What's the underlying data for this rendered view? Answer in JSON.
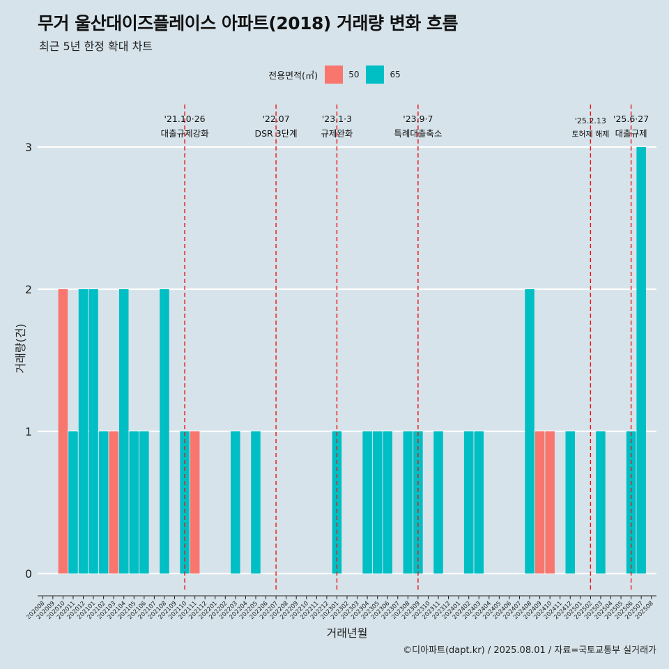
{
  "title": "무거 울산대이즈플레이스 아파트(2018) 거래량 변화 흐름",
  "subtitle": "최근 5년 한정 확대 차트",
  "caption": "©디아파트(dapt.kr) / 2025.08.01 / 자료=국토교통부 실거래가",
  "legend": {
    "title": "전용면적(㎡)",
    "items": [
      {
        "label": "50",
        "color": "#f8766d"
      },
      {
        "label": "65",
        "color": "#00bfc4"
      }
    ]
  },
  "colors": {
    "background": "#d6e3ea",
    "grid": "#ffffff",
    "event_line": "#ee1111"
  },
  "chart_data": {
    "type": "bar",
    "stacked": true,
    "xlabel": "거래년월",
    "ylabel": "거래량(건)",
    "ylim": [
      0,
      3
    ],
    "yticks": [
      0,
      1,
      2,
      3
    ],
    "grid": true,
    "legend_position": "top",
    "categories": [
      "202008",
      "202009",
      "202010",
      "202011",
      "202012",
      "202101",
      "202102",
      "202103",
      "202104",
      "202105",
      "202106",
      "202107",
      "202108",
      "202109",
      "202110",
      "202111",
      "202112",
      "202201",
      "202202",
      "202203",
      "202204",
      "202205",
      "202206",
      "202207",
      "202208",
      "202209",
      "202210",
      "202211",
      "202212",
      "202301",
      "202302",
      "202303",
      "202304",
      "202305",
      "202306",
      "202307",
      "202308",
      "202309",
      "202310",
      "202311",
      "202312",
      "202401",
      "202402",
      "202403",
      "202404",
      "202405",
      "202406",
      "202407",
      "202408",
      "202409",
      "202410",
      "202411",
      "202412",
      "202501",
      "202502",
      "202503",
      "202504",
      "202505",
      "202506",
      "202507",
      "202508"
    ],
    "series": [
      {
        "name": "50",
        "color": "#f8766d",
        "values": [
          0,
          0,
          2,
          0,
          0,
          0,
          0,
          1,
          0,
          0,
          0,
          0,
          0,
          0,
          0,
          1,
          0,
          0,
          0,
          0,
          0,
          0,
          0,
          0,
          0,
          0,
          0,
          0,
          0,
          0,
          0,
          0,
          0,
          0,
          0,
          0,
          0,
          0,
          0,
          0,
          0,
          0,
          0,
          0,
          0,
          0,
          0,
          0,
          0,
          1,
          1,
          0,
          0,
          0,
          0,
          0,
          0,
          0,
          0,
          0,
          0
        ]
      },
      {
        "name": "65",
        "color": "#00bfc4",
        "values": [
          0,
          0,
          0,
          1,
          2,
          2,
          1,
          0,
          2,
          1,
          1,
          0,
          2,
          0,
          1,
          0,
          0,
          0,
          0,
          1,
          0,
          1,
          0,
          0,
          0,
          0,
          0,
          0,
          0,
          1,
          0,
          0,
          1,
          1,
          1,
          0,
          1,
          1,
          0,
          1,
          0,
          0,
          1,
          1,
          0,
          0,
          0,
          0,
          2,
          0,
          0,
          0,
          1,
          0,
          0,
          1,
          0,
          0,
          1,
          3,
          0
        ]
      }
    ],
    "events": [
      {
        "date": "'21.10·26",
        "label": "대출규제강화",
        "x": "202110"
      },
      {
        "date": "'22.07",
        "label": "DSR 3단계",
        "x": "202207"
      },
      {
        "date": "'23.1·3",
        "label": "규제완화",
        "x": "202301"
      },
      {
        "date": "'23.9·7",
        "label": "특례대출축소",
        "x": "202309"
      },
      {
        "date": "'25.2.13",
        "label": "토허제 해제",
        "x": "202502"
      },
      {
        "date": "'25.6·27",
        "label": "대출규제",
        "x": "202506"
      }
    ]
  }
}
